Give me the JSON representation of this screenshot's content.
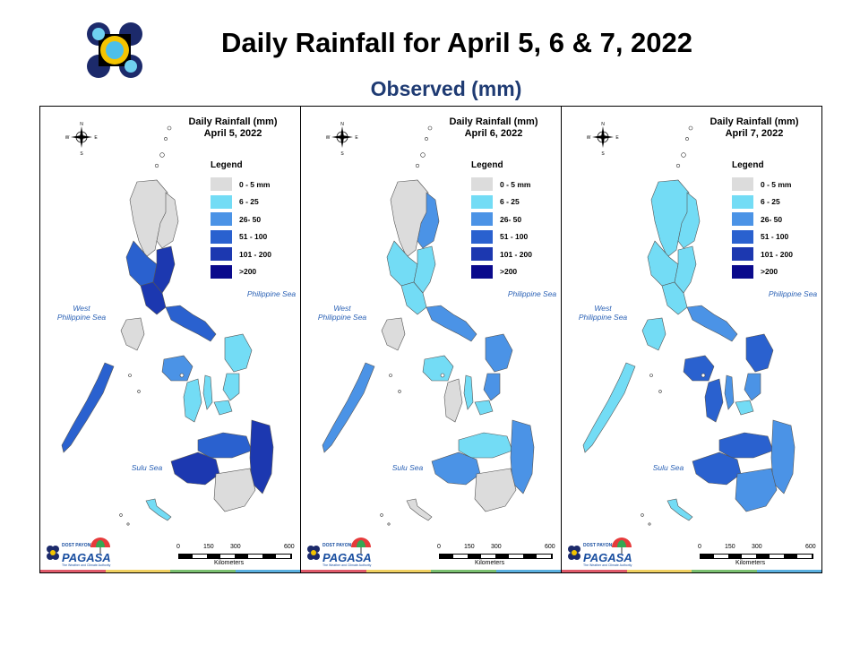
{
  "page": {
    "title": "Daily Rainfall for April 5, 6 & 7, 2022",
    "subtitle": "Observed (mm)"
  },
  "legend": {
    "title": "Legend",
    "classes": [
      {
        "label": "0 - 5 mm",
        "color": "#dcdcdc"
      },
      {
        "label": "6 - 25",
        "color": "#73dcf5"
      },
      {
        "label": "26- 50",
        "color": "#4b93e6"
      },
      {
        "label": "51 - 100",
        "color": "#2a61cf"
      },
      {
        "label": "101 - 200",
        "color": "#1c38b0"
      },
      {
        "label": ">200",
        "color": "#0a0a8c"
      }
    ]
  },
  "compass": {
    "n": "N",
    "s": "S",
    "e": "E",
    "w": "W"
  },
  "sea_labels": {
    "east": "Philippine Sea",
    "west": "West\nPhilippine Sea",
    "south": "Sulu Sea"
  },
  "scale": {
    "ticks": [
      "0",
      "150",
      "300",
      "600"
    ],
    "unit": "Kilometers"
  },
  "brand": {
    "name": "PAGASA",
    "small": "DOST PAYONG",
    "tag": "The Weather and Climate Authority"
  },
  "maps": [
    {
      "title_line1": "Daily Rainfall (mm)",
      "title_line2": "April 5, 2022",
      "regions": {
        "north_luzon": 0,
        "cagayan": 0,
        "central_luzon": 3,
        "manila_bay": 4,
        "bicol": 3,
        "quezon": 4,
        "mindoro": 0,
        "palawan": 3,
        "panay": 2,
        "negros": 1,
        "cebu": 1,
        "bohol": 1,
        "samar": 1,
        "leyte": 1,
        "mindanao_north": 3,
        "mindanao_east": 4,
        "mindanao_west": 4,
        "mindanao_south": 0,
        "sulu": 1
      }
    },
    {
      "title_line1": "Daily Rainfall (mm)",
      "title_line2": "April 6, 2022",
      "regions": {
        "north_luzon": 0,
        "cagayan": 2,
        "central_luzon": 1,
        "manila_bay": 1,
        "bicol": 2,
        "quezon": 1,
        "mindoro": 0,
        "palawan": 2,
        "panay": 1,
        "negros": 0,
        "cebu": 1,
        "bohol": 1,
        "samar": 2,
        "leyte": 2,
        "mindanao_north": 1,
        "mindanao_east": 2,
        "mindanao_west": 2,
        "mindanao_south": 0,
        "sulu": 0
      }
    },
    {
      "title_line1": "Daily Rainfall (mm)",
      "title_line2": "April 7, 2022",
      "regions": {
        "north_luzon": 1,
        "cagayan": 1,
        "central_luzon": 1,
        "manila_bay": 1,
        "bicol": 2,
        "quezon": 1,
        "mindoro": 1,
        "palawan": 1,
        "panay": 3,
        "negros": 3,
        "cebu": 2,
        "bohol": 1,
        "samar": 3,
        "leyte": 2,
        "mindanao_north": 3,
        "mindanao_east": 2,
        "mindanao_west": 3,
        "mindanao_south": 2,
        "sulu": 1
      }
    }
  ]
}
